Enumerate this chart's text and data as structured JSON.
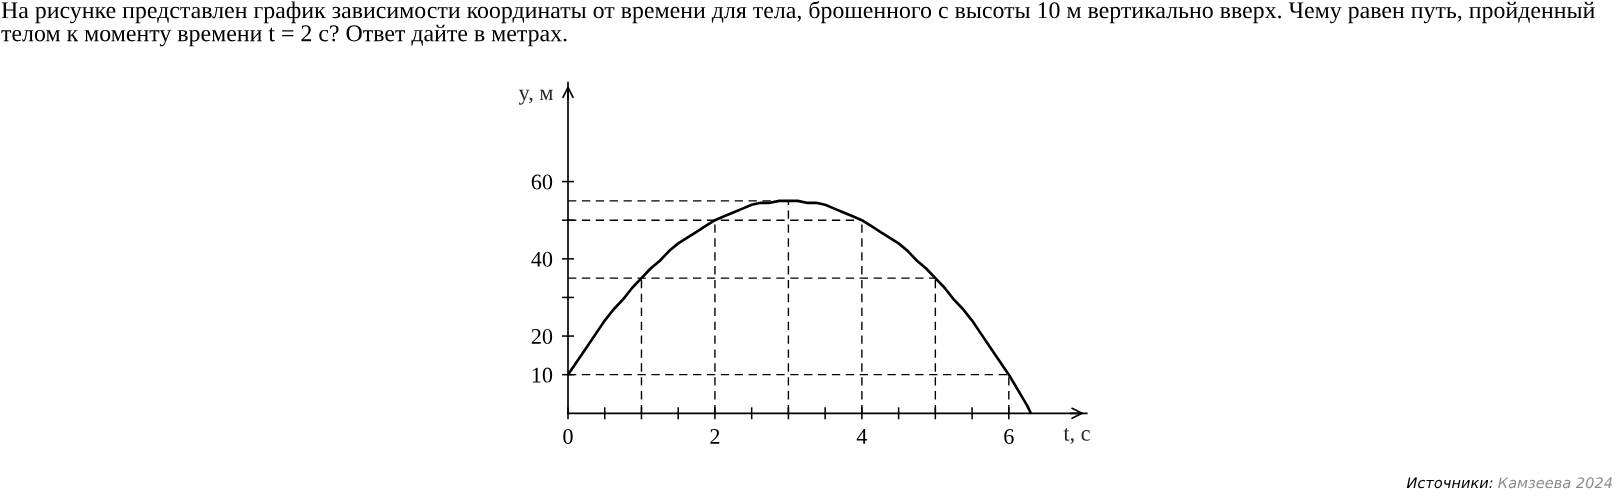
{
  "chart_data": {
    "type": "line",
    "title": "На рисунке представлен график зависимости координаты от времени для тела, брошенного с высоты 10 м вертикально вверх. Чему равен путь, пройденный телом к моменту времени t = 2 с? Ответ дайте в метрах.",
    "xlabel": "t, с",
    "ylabel": "y, м",
    "annotations": [
      "Источники:",
      "Камзеева 2024"
    ],
    "x": [
      0,
      0.125,
      0.25,
      0.375,
      0.5,
      0.625,
      0.75,
      0.875,
      1,
      1.125,
      1.25,
      1.375,
      1.5,
      1.625,
      1.75,
      1.875,
      2,
      2.125,
      2.25,
      2.375,
      2.5,
      2.625,
      2.75,
      2.875,
      3,
      3.125,
      3.25,
      3.375,
      3.5,
      3.625,
      3.75,
      3.875,
      4,
      4.125,
      4.25,
      4.375,
      4.5,
      4.625,
      4.75,
      4.875,
      5,
      5.125,
      5.25,
      5.375,
      5.5,
      5.625,
      5.75,
      5.875,
      6,
      6.125,
      6.25,
      6.3
    ],
    "series": [
      {
        "color": "#000000",
        "values": [
          10,
          13.5,
          17,
          20.5,
          24,
          27,
          29.5,
          32.5,
          35,
          37.5,
          39.5,
          42,
          44,
          45.5,
          47,
          48.5,
          50,
          51,
          52,
          53,
          54,
          54.5,
          54.5,
          55,
          55,
          55,
          54.5,
          54.5,
          54,
          53,
          52,
          51,
          50,
          48.5,
          47,
          45.5,
          44,
          42,
          39.5,
          37.5,
          35,
          32.5,
          29.5,
          27,
          24,
          20.5,
          17,
          13.5,
          10,
          6,
          2,
          0
        ]
      }
    ],
    "xlim": [
      0,
      7.06
    ],
    "ylim": [
      0,
      85.6
    ],
    "xticks": [
      0,
      {
        "value": 0.5,
        "label": null
      },
      {
        "value": 1,
        "label": null
      },
      {
        "value": 1.5,
        "label": null
      },
      2,
      {
        "value": 2.5,
        "label": null
      },
      {
        "value": 3,
        "label": null
      },
      {
        "value": 3.5,
        "label": null
      },
      4,
      {
        "value": 4.5,
        "label": null
      },
      {
        "value": 5,
        "label": null
      },
      {
        "value": 5.5,
        "label": null
      },
      6
    ],
    "yticks": [
      10,
      20,
      {
        "value": 30,
        "label": null
      },
      40,
      {
        "value": 50,
        "label": null
      },
      60
    ],
    "ref_lines": [
      {
        "axis": "y",
        "value": 55,
        "color": "#000000",
        "line_style": "dashed"
      },
      {
        "axis": "y",
        "value": 50,
        "color": "#000000",
        "line_style": "dashed"
      },
      {
        "axis": "y",
        "value": 35,
        "color": "#000000",
        "line_style": "dashed"
      },
      {
        "axis": "y",
        "value": 10,
        "color": "#000000",
        "line_style": "dashed"
      },
      {
        "axis": "x",
        "value": 1,
        "color": "#000000",
        "line_style": "dashed"
      },
      {
        "axis": "x",
        "value": 2,
        "color": "#000000",
        "line_style": "dashed"
      },
      {
        "axis": "x",
        "value": 3,
        "color": "#000000",
        "line_style": "dashed"
      },
      {
        "axis": "x",
        "value": 4,
        "color": "#000000",
        "line_style": "dashed"
      },
      {
        "axis": "x",
        "value": 5,
        "color": "#000000",
        "line_style": "dashed"
      },
      {
        "axis": "x",
        "value": 6,
        "color": "#000000",
        "line_style": "dashed"
      }
    ],
    "grid": false,
    "marker": "none",
    "line_style": "solid"
  }
}
